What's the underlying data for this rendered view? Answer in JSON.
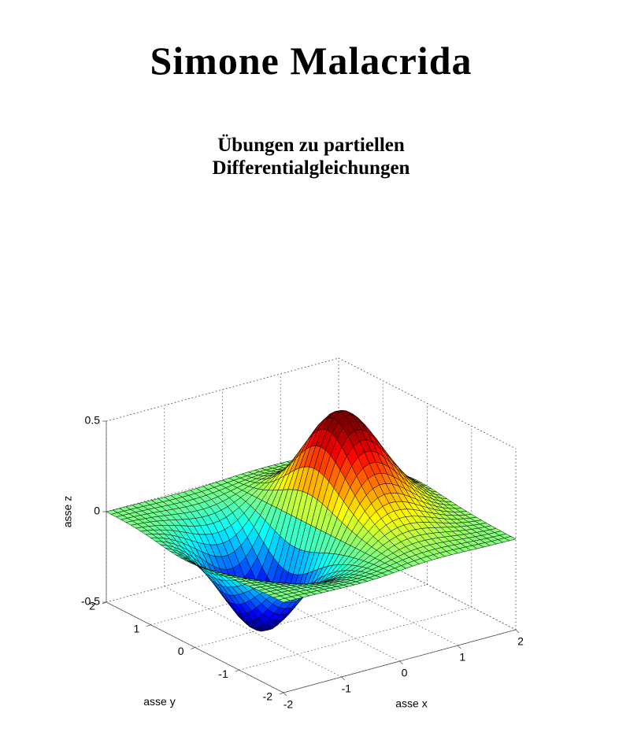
{
  "header": {
    "author": "Simone Malacrida",
    "title_lines": [
      "Übungen zu partiellen",
      "Differentialgleichungen"
    ]
  },
  "figure": {
    "type": "surface3d",
    "xlabel": "asse x",
    "ylabel": "asse y",
    "zlabel": "asse z",
    "xlim": [
      -2,
      2
    ],
    "ylim": [
      -2,
      2
    ],
    "zlim": [
      -0.5,
      0.5
    ],
    "xticks": [
      -2,
      -1,
      0,
      1,
      2
    ],
    "yticks": [
      -2,
      -1,
      0,
      1,
      2
    ],
    "zticks": [
      -0.5,
      0,
      0.5
    ]
  }
}
